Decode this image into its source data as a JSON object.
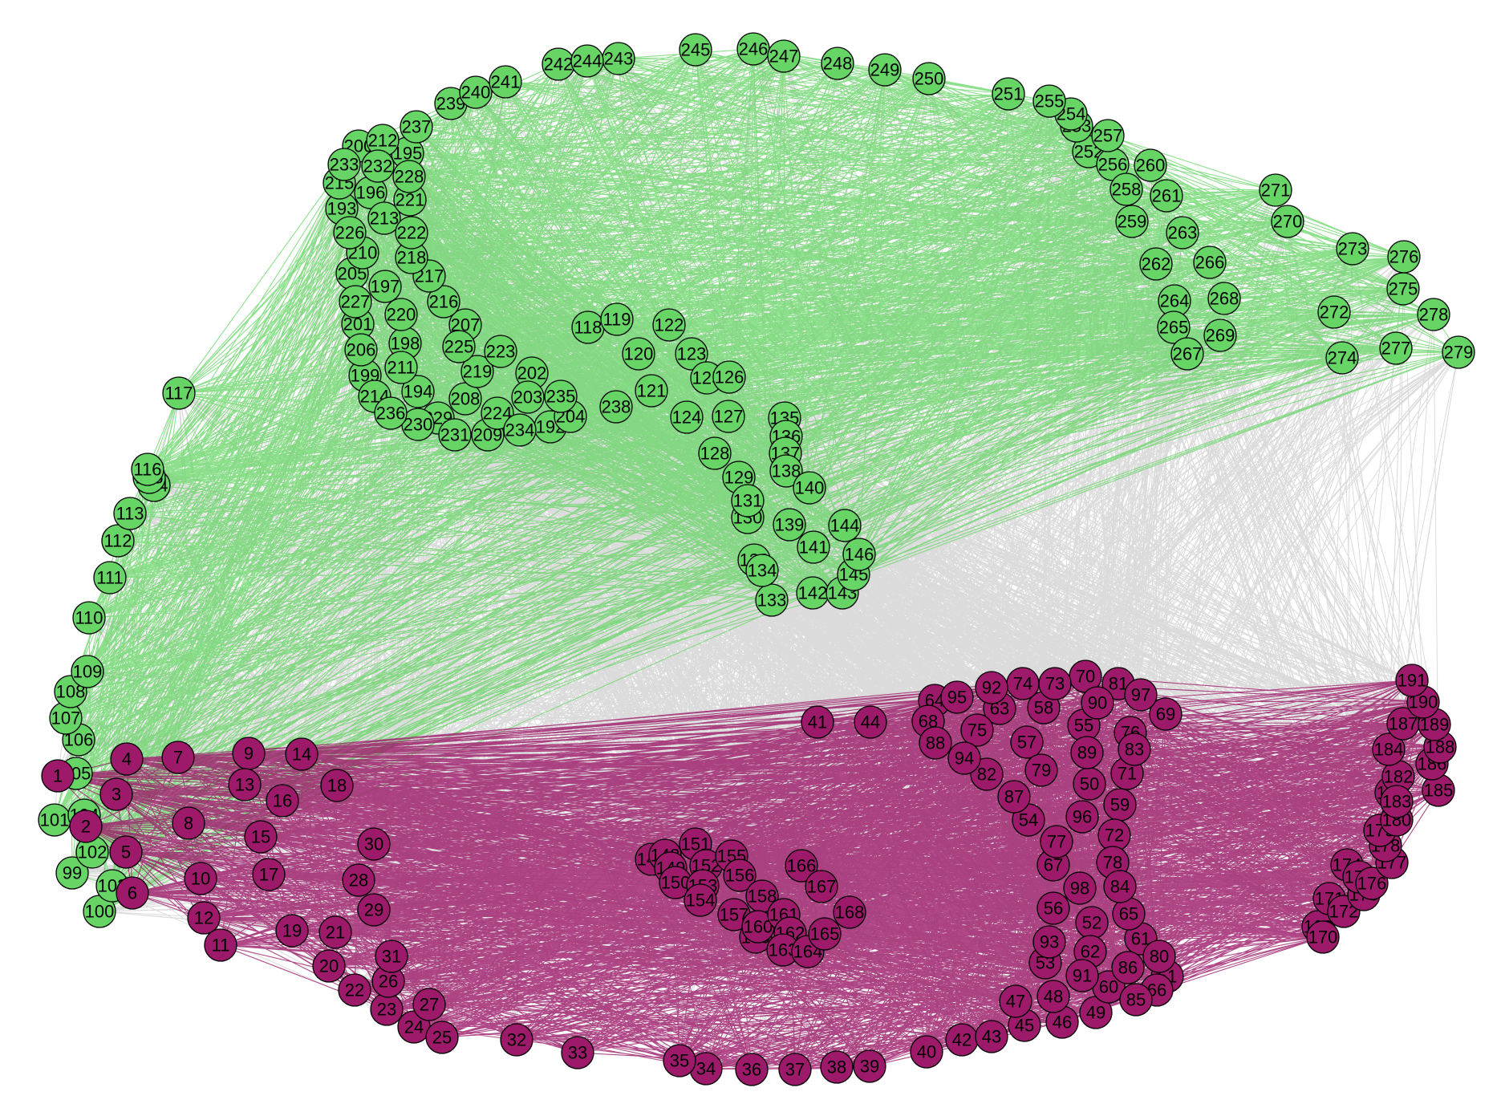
{
  "diagram": {
    "type": "network-graph",
    "colors": {
      "group_a_node": "#9C1A69",
      "group_a_edge": "#9C1A69",
      "group_b_node": "#66D566",
      "group_b_edge": "#66D566",
      "cross_edge": "#BEBEBE",
      "node_stroke": "#000000"
    },
    "groups": {
      "a": {
        "color_name": "purple",
        "node_range": [
          1,
          98
        ],
        "extra_nodes": [
          147,
          148,
          149,
          150,
          151,
          152,
          153,
          154,
          155,
          156,
          157,
          158,
          159,
          160,
          161,
          162,
          163,
          164,
          165,
          166,
          167,
          168,
          169,
          170,
          171,
          172,
          173,
          174,
          175,
          176,
          177,
          178,
          179,
          180,
          181,
          182,
          183,
          184,
          185,
          186,
          187,
          188,
          189,
          190,
          191
        ]
      },
      "b": {
        "color_name": "green",
        "node_range": [
          99,
          146
        ],
        "extra_nodes": [
          192,
          193,
          194,
          195,
          196,
          197,
          198,
          199,
          200,
          201,
          202,
          203,
          204,
          205,
          206,
          207,
          208,
          209,
          210,
          211,
          212,
          213,
          214,
          215,
          216,
          217,
          218,
          219,
          220,
          221,
          222,
          223,
          224,
          225,
          226,
          227,
          228,
          229,
          230,
          231,
          232,
          233,
          234,
          235,
          236,
          237,
          238,
          239,
          240,
          241,
          242,
          243,
          244,
          245,
          246,
          247,
          248,
          249,
          250,
          251,
          252,
          253,
          254,
          255,
          256,
          257,
          258,
          259,
          260,
          261,
          262,
          263,
          264,
          265,
          266,
          267,
          268,
          269,
          270,
          271,
          272,
          273,
          274,
          275,
          276,
          277,
          278,
          279
        ]
      }
    },
    "node_labels_a": [
      "1",
      "2",
      "3",
      "4",
      "5",
      "6",
      "7",
      "8",
      "9",
      "10",
      "11",
      "12",
      "13",
      "14",
      "15",
      "16",
      "17",
      "18",
      "19",
      "20",
      "21",
      "22",
      "23",
      "24",
      "25",
      "26",
      "27",
      "28",
      "29",
      "30",
      "31",
      "32",
      "33",
      "34",
      "35",
      "36",
      "37",
      "38",
      "39",
      "40",
      "41",
      "42",
      "43",
      "44",
      "45",
      "46",
      "47",
      "48",
      "49",
      "50",
      "51",
      "52",
      "53",
      "54",
      "55",
      "56",
      "57",
      "58",
      "59",
      "60",
      "61",
      "62",
      "63",
      "64",
      "65",
      "66",
      "67",
      "68",
      "69",
      "70",
      "71",
      "72",
      "73",
      "74",
      "75",
      "76",
      "77",
      "78",
      "79",
      "80",
      "81",
      "82",
      "83",
      "84",
      "85",
      "86",
      "87",
      "88",
      "89",
      "90",
      "91",
      "92",
      "93",
      "94",
      "95",
      "96",
      "97",
      "98",
      "147",
      "148",
      "149",
      "150",
      "151",
      "152",
      "153",
      "154",
      "155",
      "156",
      "157",
      "158",
      "159",
      "160",
      "161",
      "162",
      "163",
      "164",
      "165",
      "166",
      "167",
      "168",
      "169",
      "170",
      "171",
      "172",
      "173",
      "174",
      "175",
      "176",
      "177",
      "178",
      "179",
      "180",
      "181",
      "182",
      "183",
      "184",
      "185",
      "186",
      "187",
      "188",
      "189",
      "190",
      "191"
    ],
    "node_labels_b": [
      "99",
      "100",
      "101",
      "102",
      "103",
      "104",
      "105",
      "106",
      "107",
      "108",
      "109",
      "110",
      "111",
      "112",
      "113",
      "114",
      "115",
      "116",
      "117",
      "118",
      "119",
      "120",
      "121",
      "122",
      "123",
      "124",
      "125",
      "126",
      "127",
      "128",
      "129",
      "130",
      "131",
      "132",
      "133",
      "134",
      "135",
      "136",
      "137",
      "138",
      "139",
      "140",
      "141",
      "142",
      "143",
      "144",
      "145",
      "146",
      "192",
      "193",
      "194",
      "195",
      "196",
      "197",
      "198",
      "199",
      "200",
      "201",
      "202",
      "203",
      "204",
      "205",
      "206",
      "207",
      "208",
      "209",
      "210",
      "211",
      "212",
      "213",
      "214",
      "215",
      "216",
      "217",
      "218",
      "219",
      "220",
      "221",
      "222",
      "223",
      "224",
      "225",
      "226",
      "227",
      "228",
      "229",
      "230",
      "231",
      "232",
      "233",
      "234",
      "235",
      "236",
      "237",
      "238",
      "239",
      "240",
      "241",
      "242",
      "243",
      "244",
      "245",
      "246",
      "247",
      "248",
      "249",
      "250",
      "251",
      "252",
      "253",
      "254",
      "255",
      "256",
      "257",
      "258",
      "259",
      "260",
      "261",
      "262",
      "263",
      "264",
      "265",
      "266",
      "267",
      "268",
      "269",
      "270",
      "271",
      "272",
      "273",
      "274",
      "275",
      "276",
      "277",
      "278",
      "279"
    ]
  }
}
